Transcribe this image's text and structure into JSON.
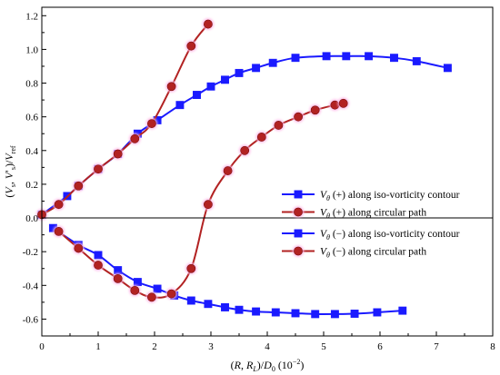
{
  "chart_data": {
    "type": "line",
    "xlabel": "(R, R_L)/D_0 (10^-2)",
    "xlabel_parts": [
      "(",
      "R",
      ", ",
      "R",
      "L",
      ")/",
      "D",
      "0",
      " (10",
      "−2",
      ")"
    ],
    "ylabel_parts": [
      "(",
      "V",
      "s",
      ", ",
      "V",
      "′",
      "s",
      ")/",
      "V",
      "ref"
    ],
    "xlim": [
      0,
      8
    ],
    "ylim": [
      -0.7,
      1.25
    ],
    "xticks": [
      "0",
      "1",
      "2",
      "3",
      "4",
      "5",
      "6",
      "7",
      "8"
    ],
    "yticks": [
      "-0.6",
      "-0.4",
      "-0.2",
      "0.0",
      "0.2",
      "0.4",
      "0.6",
      "0.8",
      "1.0",
      "1.2"
    ],
    "xtick_values": [
      0,
      1,
      2,
      3,
      4,
      5,
      6,
      7,
      8
    ],
    "ytick_values": [
      -0.6,
      -0.4,
      -0.2,
      0.0,
      0.2,
      0.4,
      0.6,
      0.8,
      1.0,
      1.2
    ],
    "zero_line": true,
    "grid": false,
    "legend_position": "center-right",
    "series": [
      {
        "name": "Vθ (+) along iso-vorticity contour",
        "label_parts": [
          "V",
          "θ",
          " (+) along iso-vorticity contour"
        ],
        "color": "#1a1aff",
        "marker": "square",
        "x": [
          0.0,
          0.45,
          0.65,
          1.0,
          1.35,
          1.7,
          2.05,
          2.45,
          2.75,
          3.0,
          3.25,
          3.5,
          3.8,
          4.1,
          4.5,
          5.05,
          5.4,
          5.8,
          6.25,
          6.65,
          7.2
        ],
        "y": [
          0.02,
          0.13,
          0.19,
          0.29,
          0.38,
          0.5,
          0.58,
          0.67,
          0.73,
          0.78,
          0.82,
          0.86,
          0.89,
          0.92,
          0.95,
          0.96,
          0.96,
          0.96,
          0.95,
          0.93,
          0.89
        ]
      },
      {
        "name": "Vθ (+) along circular path",
        "label_parts": [
          "V",
          "θ",
          " (+) along circular path"
        ],
        "color": "#b22222",
        "marker": "circle",
        "x": [
          0.0,
          0.3,
          0.65,
          1.0,
          1.35,
          1.65,
          1.95,
          2.3,
          2.65,
          2.95
        ],
        "y": [
          0.02,
          0.08,
          0.19,
          0.29,
          0.38,
          0.47,
          0.56,
          0.78,
          1.02,
          1.15
        ]
      },
      {
        "name": "Vθ (−) along iso-vorticity contour",
        "label_parts": [
          "V",
          "θ",
          " (−) along iso-vorticity contour"
        ],
        "color": "#1a1aff",
        "marker": "square",
        "x": [
          0.2,
          0.65,
          1.0,
          1.35,
          1.7,
          2.05,
          2.35,
          2.65,
          2.95,
          3.25,
          3.5,
          3.8,
          4.15,
          4.5,
          4.85,
          5.2,
          5.55,
          5.95,
          6.4
        ],
        "y": [
          -0.06,
          -0.16,
          -0.22,
          -0.31,
          -0.38,
          -0.42,
          -0.46,
          -0.49,
          -0.51,
          -0.53,
          -0.545,
          -0.555,
          -0.56,
          -0.565,
          -0.57,
          -0.57,
          -0.568,
          -0.56,
          -0.55
        ]
      },
      {
        "name": "Vθ (−) along circular path",
        "label_parts": [
          "V",
          "θ",
          " (−) along circular path"
        ],
        "color": "#b22222",
        "marker": "circle",
        "x": [
          0.3,
          0.65,
          1.0,
          1.35,
          1.65,
          1.95,
          2.3,
          2.65,
          2.95,
          3.3,
          3.6,
          3.9,
          4.2,
          4.55,
          4.85,
          5.2,
          5.35
        ],
        "y": [
          -0.08,
          -0.18,
          -0.28,
          -0.36,
          -0.43,
          -0.47,
          -0.45,
          -0.3,
          0.08,
          0.28,
          0.4,
          0.48,
          0.55,
          0.6,
          0.64,
          0.67,
          0.68
        ]
      }
    ]
  }
}
